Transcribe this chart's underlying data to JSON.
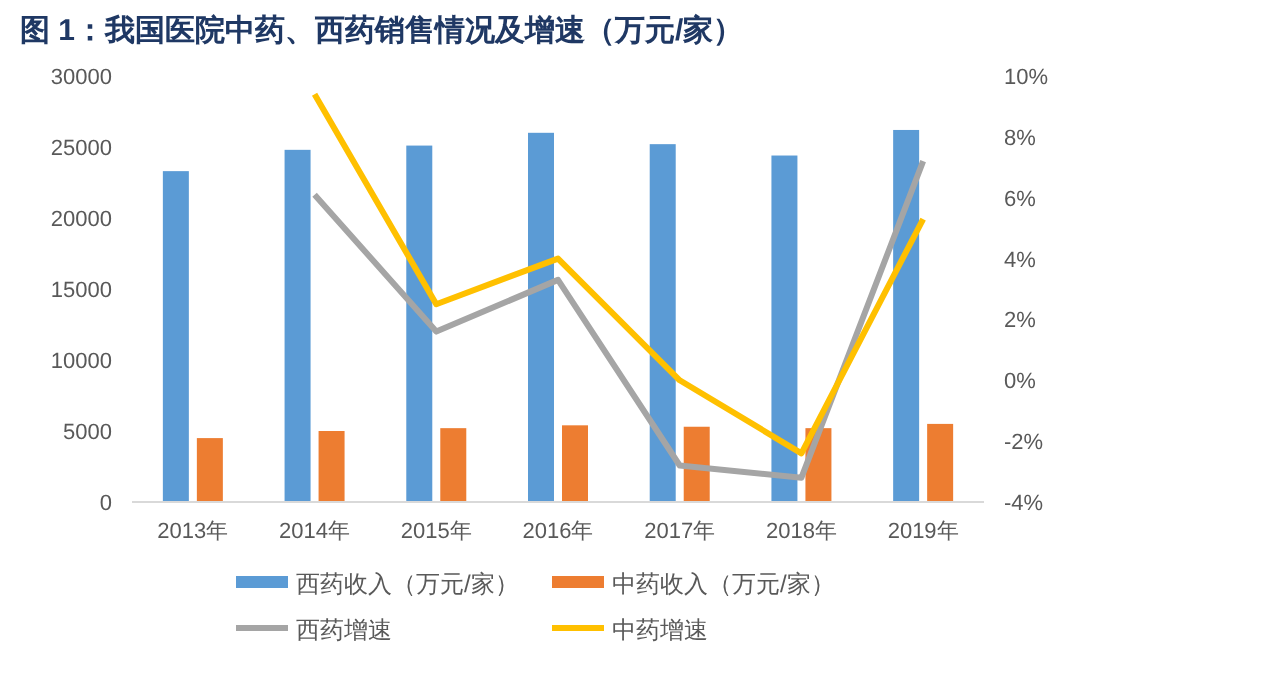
{
  "chart_data": {
    "type": "bar",
    "title": "图 1：我国医院中药、西药销售情况及增速（万元/家）",
    "categories": [
      "2013年",
      "2014年",
      "2015年",
      "2016年",
      "2017年",
      "2018年",
      "2019年"
    ],
    "series": [
      {
        "name": "西药收入（万元/家）",
        "color": "#5b9bd5",
        "values": [
          23300,
          24800,
          25100,
          26000,
          25200,
          24400,
          26200
        ]
      },
      {
        "name": "中药收入（万元/家）",
        "color": "#ed7d31",
        "values": [
          4500,
          5000,
          5200,
          5400,
          5300,
          5200,
          5500
        ]
      },
      {
        "name": "西药增速",
        "type": "line",
        "axis": "y2",
        "color": "#a5a5a5",
        "values": [
          null,
          6.1,
          1.6,
          3.3,
          -2.8,
          -3.2,
          7.2
        ]
      },
      {
        "name": "中药增速",
        "type": "line",
        "axis": "y2",
        "color": "#ffc000",
        "values": [
          null,
          9.4,
          2.5,
          4.0,
          0.0,
          -2.4,
          5.3
        ]
      }
    ],
    "ylim": [
      0,
      30000
    ],
    "yticks": [
      0,
      5000,
      10000,
      15000,
      20000,
      25000,
      30000
    ],
    "y2lim": [
      -4,
      10
    ],
    "y2ticks": [
      {
        "value": -4,
        "label": "-4%"
      },
      {
        "value": -2,
        "label": "-2%"
      },
      {
        "value": 0,
        "label": "0%"
      },
      {
        "value": 2,
        "label": "2%"
      },
      {
        "value": 4,
        "label": "4%"
      },
      {
        "value": 6,
        "label": "6%"
      },
      {
        "value": 8,
        "label": "8%"
      },
      {
        "value": 10,
        "label": "10%"
      }
    ],
    "legend": "bottom",
    "grid": false,
    "marker": "none",
    "line_style": "solid"
  }
}
